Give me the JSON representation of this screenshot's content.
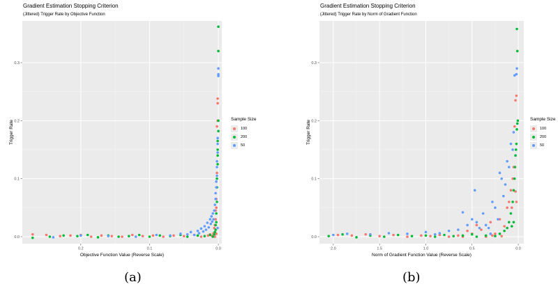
{
  "chart_data": [
    {
      "type": "scatter",
      "title": "Gradient Estimation Stopping Criterion",
      "subtitle": "(Jittered) Trigger Rate by Objective Function",
      "xlabel": "Objective Function Value (Reverse Scale)",
      "ylabel": "Trigger Rate",
      "x_reversed": true,
      "xlim": [
        0.285,
        -0.005
      ],
      "ylim": [
        -0.012,
        0.372
      ],
      "x_ticks": [
        0.2,
        0.1,
        0.0
      ],
      "x_tick_labels": [
        "0.2",
        "0.1",
        "0.0"
      ],
      "y_ticks": [
        0.0,
        0.1,
        0.2,
        0.3
      ],
      "y_tick_labels": [
        "0.0",
        "0.1",
        "0.2",
        "0.3"
      ],
      "grid": true,
      "legend_title": "Sample Size",
      "legend_position": "right",
      "series": [
        {
          "name": "100",
          "color": "#F8766D",
          "points": [
            [
              0.27,
              0.004
            ],
            [
              0.25,
              0.003
            ],
            [
              0.23,
              0.001
            ],
            [
              0.215,
              0.002
            ],
            [
              0.2,
              0.003
            ],
            [
              0.185,
              0.0
            ],
            [
              0.17,
              0.002
            ],
            [
              0.155,
              0.001
            ],
            [
              0.14,
              0.0
            ],
            [
              0.125,
              0.003
            ],
            [
              0.11,
              0.001
            ],
            [
              0.095,
              0.002
            ],
            [
              0.08,
              0.0
            ],
            [
              0.065,
              0.002
            ],
            [
              0.05,
              0.001
            ],
            [
              0.035,
              0.003
            ],
            [
              0.025,
              0.0
            ],
            [
              0.015,
              0.002
            ],
            [
              0.012,
              0.004
            ],
            [
              0.009,
              0.001
            ],
            [
              0.007,
              0.006
            ],
            [
              0.006,
              0.015
            ],
            [
              0.005,
              0.02
            ],
            [
              0.004,
              0.03
            ],
            [
              0.004,
              0.045
            ],
            [
              0.003,
              0.05
            ],
            [
              0.003,
              0.065
            ],
            [
              0.002,
              0.085
            ],
            [
              0.002,
              0.11
            ],
            [
              0.002,
              0.19
            ],
            [
              0.001,
              0.2
            ],
            [
              0.001,
              0.23
            ],
            [
              0.001,
              0.238
            ],
            [
              0.003,
              0.005
            ],
            [
              0.005,
              0.0
            ],
            [
              0.008,
              0.002
            ]
          ]
        },
        {
          "name": "200",
          "color": "#00BA38",
          "points": [
            [
              0.27,
              -0.002
            ],
            [
              0.245,
              0.0
            ],
            [
              0.225,
              0.002
            ],
            [
              0.205,
              0.001
            ],
            [
              0.19,
              0.003
            ],
            [
              0.175,
              -0.001
            ],
            [
              0.16,
              0.002
            ],
            [
              0.145,
              0.0
            ],
            [
              0.13,
              0.001
            ],
            [
              0.115,
              0.003
            ],
            [
              0.1,
              0.0
            ],
            [
              0.085,
              0.002
            ],
            [
              0.07,
              0.001
            ],
            [
              0.055,
              0.003
            ],
            [
              0.045,
              0.0
            ],
            [
              0.03,
              0.002
            ],
            [
              0.02,
              0.001
            ],
            [
              0.012,
              0.003
            ],
            [
              0.008,
              0.0
            ],
            [
              0.006,
              0.004
            ],
            [
              0.005,
              0.008
            ],
            [
              0.004,
              0.012
            ],
            [
              0.004,
              0.02
            ],
            [
              0.003,
              0.025
            ],
            [
              0.003,
              0.04
            ],
            [
              0.002,
              0.06
            ],
            [
              0.002,
              0.085
            ],
            [
              0.002,
              0.1
            ],
            [
              0.001,
              0.125
            ],
            [
              0.001,
              0.14
            ],
            [
              0.001,
              0.15
            ],
            [
              0.001,
              0.165
            ],
            [
              0.0,
              0.182
            ],
            [
              0.0,
              0.2
            ],
            [
              0.0,
              0.32
            ],
            [
              0.0,
              0.362
            ]
          ]
        },
        {
          "name": "50",
          "color": "#619CFF",
          "points": [
            [
              0.24,
              -0.001
            ],
            [
              0.2,
              0.002
            ],
            [
              0.16,
              0.001
            ],
            [
              0.12,
              0.0
            ],
            [
              0.09,
              0.003
            ],
            [
              0.07,
              0.002
            ],
            [
              0.055,
              0.005
            ],
            [
              0.045,
              0.004
            ],
            [
              0.04,
              0.008
            ],
            [
              0.035,
              0.003
            ],
            [
              0.03,
              0.01
            ],
            [
              0.028,
              0.006
            ],
            [
              0.025,
              0.014
            ],
            [
              0.022,
              0.009
            ],
            [
              0.02,
              0.018
            ],
            [
              0.018,
              0.012
            ],
            [
              0.016,
              0.024
            ],
            [
              0.014,
              0.016
            ],
            [
              0.012,
              0.03
            ],
            [
              0.011,
              0.022
            ],
            [
              0.01,
              0.035
            ],
            [
              0.009,
              0.026
            ],
            [
              0.008,
              0.04
            ],
            [
              0.007,
              0.03
            ],
            [
              0.006,
              0.045
            ],
            [
              0.005,
              0.055
            ],
            [
              0.004,
              0.065
            ],
            [
              0.004,
              0.075
            ],
            [
              0.003,
              0.085
            ],
            [
              0.003,
              0.095
            ],
            [
              0.002,
              0.105
            ],
            [
              0.002,
              0.12
            ],
            [
              0.002,
              0.13
            ],
            [
              0.001,
              0.145
            ],
            [
              0.001,
              0.16
            ],
            [
              0.001,
              0.17
            ],
            [
              0.0,
              0.277
            ],
            [
              0.0,
              0.28
            ],
            [
              0.0,
              0.29
            ],
            [
              0.001,
              0.015
            ]
          ]
        }
      ]
    },
    {
      "type": "scatter",
      "title": "Gradient Estimation Stopping Criterion",
      "subtitle": "(Jittered) Trigger Rate by Norm of Gradient Function",
      "xlabel": "Norm of Gradient Function Value (Reverse Scale)",
      "ylabel": "Trigger Rate",
      "x_reversed": true,
      "xlim": [
        2.15,
        -0.06
      ],
      "ylim": [
        -0.012,
        0.372
      ],
      "x_ticks": [
        2.0,
        1.5,
        1.0,
        0.5,
        0.0
      ],
      "x_tick_labels": [
        "2.0",
        "1.5",
        "1.0",
        "0.5",
        "0.0"
      ],
      "y_ticks": [
        0.0,
        0.1,
        0.2,
        0.3
      ],
      "y_tick_labels": [
        "0.0",
        "0.1",
        "0.2",
        "0.3"
      ],
      "grid": true,
      "legend_title": "Sample Size",
      "legend_position": "right",
      "series": [
        {
          "name": "100",
          "color": "#F8766D",
          "points": [
            [
              1.95,
              0.003
            ],
            [
              1.8,
              0.002
            ],
            [
              1.65,
              0.004
            ],
            [
              1.5,
              0.001
            ],
            [
              1.35,
              0.003
            ],
            [
              1.2,
              0.0
            ],
            [
              1.05,
              0.002
            ],
            [
              0.95,
              0.001
            ],
            [
              0.85,
              0.003
            ],
            [
              0.75,
              0.0
            ],
            [
              0.65,
              0.002
            ],
            [
              0.55,
              0.01
            ],
            [
              0.5,
              0.005
            ],
            [
              0.45,
              0.02
            ],
            [
              0.4,
              0.012
            ],
            [
              0.35,
              0.0
            ],
            [
              0.3,
              0.025
            ],
            [
              0.25,
              0.005
            ],
            [
              0.2,
              0.03
            ],
            [
              0.15,
              0.018
            ],
            [
              0.12,
              0.05
            ],
            [
              0.1,
              0.06
            ],
            [
              0.08,
              0.08
            ],
            [
              0.06,
              0.1
            ],
            [
              0.05,
              0.12
            ],
            [
              0.04,
              0.19
            ],
            [
              0.03,
              0.235
            ],
            [
              0.02,
              0.243
            ],
            [
              0.02,
              0.06
            ],
            [
              0.07,
              0.05
            ],
            [
              0.03,
              0.078
            ],
            [
              0.18,
              0.001
            ],
            [
              0.28,
              0.002
            ],
            [
              0.6,
              0.0
            ]
          ]
        },
        {
          "name": "200",
          "color": "#00BA38",
          "points": [
            [
              2.05,
              0.001
            ],
            [
              1.9,
              0.004
            ],
            [
              1.75,
              -0.001
            ],
            [
              1.6,
              0.002
            ],
            [
              1.45,
              0.0
            ],
            [
              1.3,
              0.003
            ],
            [
              1.15,
              0.001
            ],
            [
              1.0,
              0.002
            ],
            [
              0.9,
              0.0
            ],
            [
              0.8,
              0.003
            ],
            [
              0.7,
              0.001
            ],
            [
              0.6,
              0.002
            ],
            [
              0.5,
              0.004
            ],
            [
              0.45,
              0.0
            ],
            [
              0.35,
              0.002
            ],
            [
              0.25,
              0.001
            ],
            [
              0.2,
              0.005
            ],
            [
              0.15,
              0.01
            ],
            [
              0.12,
              0.015
            ],
            [
              0.1,
              0.025
            ],
            [
              0.08,
              0.04
            ],
            [
              0.06,
              0.06
            ],
            [
              0.05,
              0.08
            ],
            [
              0.04,
              0.1
            ],
            [
              0.035,
              0.12
            ],
            [
              0.03,
              0.14
            ],
            [
              0.025,
              0.15
            ],
            [
              0.02,
              0.16
            ],
            [
              0.015,
              0.185
            ],
            [
              0.01,
              0.195
            ],
            [
              0.005,
              0.2
            ],
            [
              0.01,
              0.32
            ],
            [
              0.015,
              0.358
            ],
            [
              0.05,
              0.025
            ],
            [
              0.07,
              0.018
            ]
          ]
        },
        {
          "name": "50",
          "color": "#619CFF",
          "points": [
            [
              2.0,
              0.003
            ],
            [
              1.85,
              0.005
            ],
            [
              1.6,
              0.004
            ],
            [
              1.4,
              0.006
            ],
            [
              1.2,
              0.005
            ],
            [
              1.0,
              0.008
            ],
            [
              0.85,
              0.006
            ],
            [
              0.75,
              0.01
            ],
            [
              0.65,
              0.012
            ],
            [
              0.6,
              0.042
            ],
            [
              0.55,
              0.02
            ],
            [
              0.5,
              0.03
            ],
            [
              0.47,
              0.08
            ],
            [
              0.45,
              0.025
            ],
            [
              0.42,
              0.015
            ],
            [
              0.38,
              0.04
            ],
            [
              0.35,
              0.02
            ],
            [
              0.32,
              0.015
            ],
            [
              0.28,
              0.06
            ],
            [
              0.25,
              0.05
            ],
            [
              0.22,
              0.03
            ],
            [
              0.2,
              0.11
            ],
            [
              0.18,
              0.1
            ],
            [
              0.16,
              0.07
            ],
            [
              0.14,
              0.09
            ],
            [
              0.12,
              0.13
            ],
            [
              0.1,
              0.12
            ],
            [
              0.08,
              0.16
            ],
            [
              0.06,
              0.15
            ],
            [
              0.05,
              0.18
            ],
            [
              0.04,
              0.278
            ],
            [
              0.02,
              0.28
            ],
            [
              0.015,
              0.29
            ],
            [
              0.3,
              0.005
            ],
            [
              0.9,
              0.004
            ]
          ]
        }
      ]
    }
  ],
  "captions": [
    "(a)",
    "(b)"
  ],
  "legend_entries": [
    "100",
    "200",
    "50"
  ]
}
